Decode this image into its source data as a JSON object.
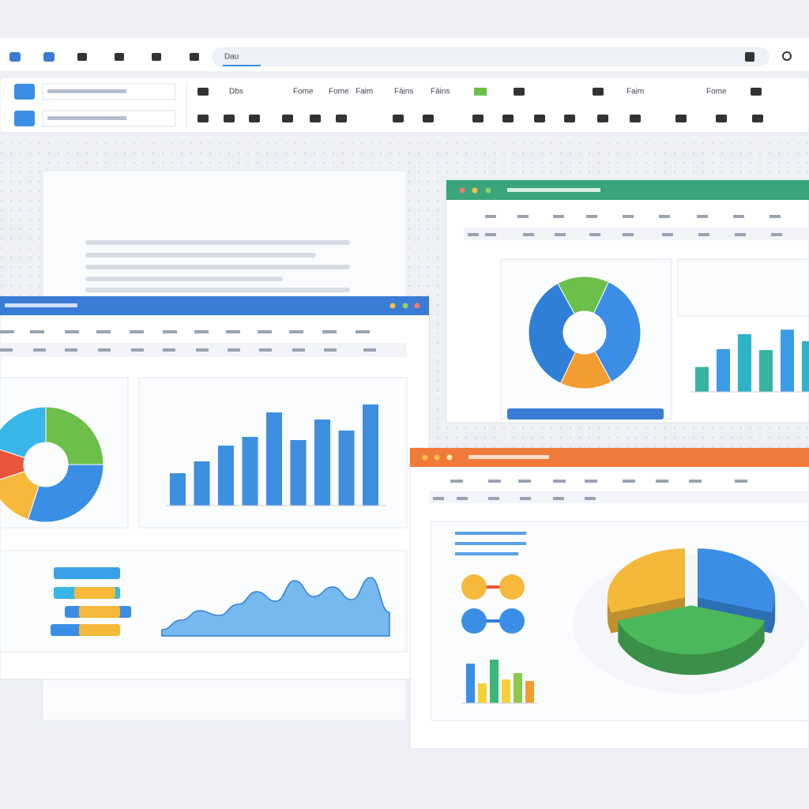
{
  "toolbar": {
    "address": "Dau",
    "labels": [
      "Dbs",
      "Fome",
      "Fome",
      "Faim",
      "Fāins",
      "Fāins",
      "Faim",
      "Fome"
    ]
  },
  "left_window": {
    "donut": {
      "values": [
        25,
        30,
        15,
        10,
        20
      ],
      "colors": [
        "#6cc04a",
        "#3a8ee6",
        "#f6b93b",
        "#e8553a",
        "#38b6e8"
      ]
    },
    "bars": {
      "values": [
        41,
        56,
        76,
        87,
        118,
        83,
        109,
        95,
        128
      ],
      "ylim": [
        0,
        140
      ],
      "color": "#3d8fe0"
    },
    "area": {
      "values": [
        8,
        20,
        32,
        26,
        40,
        56,
        44,
        70,
        50,
        62,
        46,
        74,
        30
      ],
      "ylim": [
        0,
        80
      ],
      "color": "#4aa3e8"
    }
  },
  "right_top_window": {
    "donut": {
      "values": [
        15,
        35,
        15,
        35
      ],
      "colors": [
        "#6cc04a",
        "#3a8ee6",
        "#f39c32",
        "#2f7fd6"
      ]
    },
    "bars": {
      "values": [
        28,
        48,
        65,
        47,
        70,
        57
      ],
      "ylim": [
        0,
        80
      ],
      "colors": [
        "#35b5a0",
        "#3a9be6",
        "#2fb3c6",
        "#35b5a0",
        "#3a9be6",
        "#2fb3c6"
      ]
    }
  },
  "right_bottom_window": {
    "pie": {
      "values": [
        30,
        40,
        30
      ],
      "colors": [
        "#3a8ee6",
        "#4cb85c",
        "#f5b93a"
      ]
    },
    "bars": {
      "values": [
        50,
        25,
        55,
        30,
        38,
        28
      ],
      "ylim": [
        0,
        60
      ],
      "colors": [
        "#3a8ee6",
        "#f2d23a",
        "#3ab87a",
        "#f2d23a",
        "#8cc84b",
        "#f39c32"
      ]
    }
  }
}
